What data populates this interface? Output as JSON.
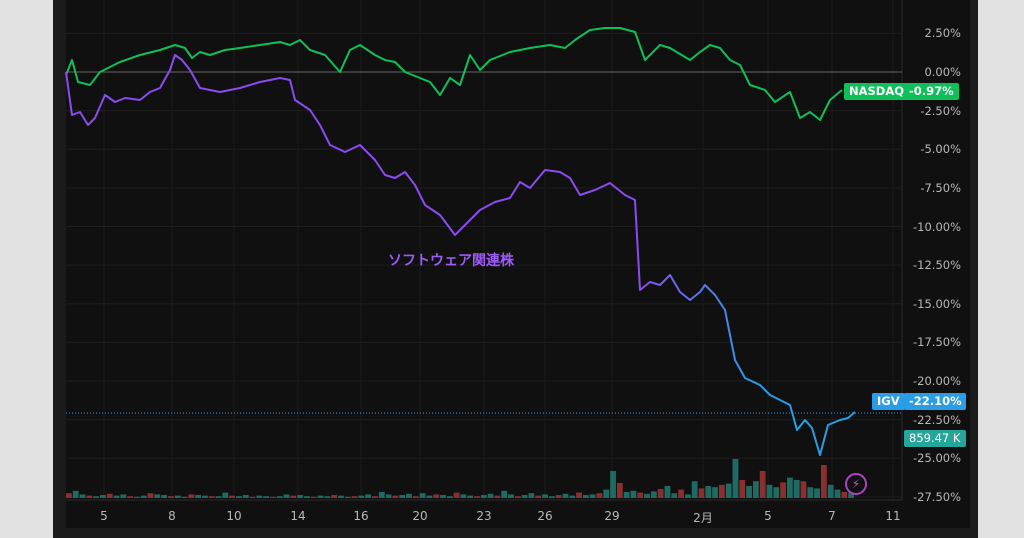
{
  "annotation": "ソフトウェア関連株",
  "y_axis": [
    "2.50%",
    "0.00%",
    "-2.50%",
    "-5.00%",
    "-7.50%",
    "-10.00%",
    "-12.50%",
    "-15.00%",
    "-17.50%",
    "-20.00%",
    "-22.50%",
    "-25.00%",
    "-27.50%"
  ],
  "y_values": [
    2.5,
    0,
    -2.5,
    -5,
    -7.5,
    -10,
    -12.5,
    -15,
    -17.5,
    -20,
    -22.5,
    -25,
    -27.5
  ],
  "x_axis": [
    "5",
    "8",
    "10",
    "14",
    "16",
    "20",
    "23",
    "26",
    "29",
    "2月",
    "5",
    "7",
    "11"
  ],
  "nasdaq": {
    "name": "NASDAQ",
    "value": "-0.97%",
    "color": "#0fbf5a"
  },
  "igv": {
    "name": "IGV",
    "value": "-22.10%",
    "color": "#2b9ce6",
    "color2": "#8a4cf0"
  },
  "volume": {
    "value": "859.47 K",
    "color": "#26a69a"
  },
  "chart_data": {
    "type": "line",
    "series": [
      {
        "name": "NASDAQ",
        "x": [
          66,
          72,
          78,
          90,
          100,
          120,
          140,
          160,
          175,
          185,
          192,
          200,
          210,
          225,
          240,
          260,
          280,
          290,
          300,
          310,
          325,
          340,
          350,
          360,
          375,
          385,
          395,
          405,
          420,
          430,
          440,
          450,
          460,
          470,
          480,
          490,
          510,
          530,
          550,
          565,
          575,
          590,
          605,
          620,
          635,
          645,
          660,
          670,
          690,
          700,
          710,
          720,
          730,
          740,
          750,
          765,
          775,
          790,
          800,
          810,
          820,
          830,
          842
        ],
        "y": [
          75,
          60,
          82,
          85,
          72,
          62,
          55,
          50,
          45,
          48,
          58,
          52,
          55,
          50,
          48,
          45,
          42,
          45,
          40,
          50,
          55,
          72,
          50,
          45,
          55,
          60,
          62,
          72,
          78,
          82,
          95,
          78,
          85,
          55,
          70,
          60,
          52,
          48,
          45,
          48,
          40,
          30,
          28,
          28,
          32,
          60,
          45,
          48,
          60,
          52,
          45,
          48,
          60,
          65,
          85,
          90,
          102,
          92,
          118,
          112,
          120,
          100,
          90
        ]
      },
      {
        "name": "IGV",
        "x": [
          66,
          72,
          80,
          88,
          95,
          105,
          115,
          125,
          140,
          150,
          160,
          170,
          175,
          182,
          190,
          200,
          210,
          220,
          240,
          260,
          280,
          290,
          295,
          310,
          320,
          330,
          345,
          360,
          375,
          385,
          395,
          405,
          415,
          425,
          440,
          455,
          465,
          480,
          495,
          510,
          520,
          530,
          545,
          560,
          570,
          580,
          595,
          610,
          625,
          635,
          640,
          650,
          660,
          670,
          680,
          690,
          700,
          705,
          715,
          725,
          735,
          745,
          760,
          770,
          780,
          790,
          797,
          805,
          812,
          820,
          828,
          840,
          848,
          855
        ],
        "y": [
          72,
          115,
          112,
          125,
          118,
          95,
          102,
          98,
          100,
          92,
          88,
          70,
          55,
          60,
          70,
          88,
          90,
          92,
          88,
          82,
          78,
          80,
          100,
          110,
          125,
          145,
          152,
          145,
          160,
          175,
          178,
          172,
          185,
          205,
          215,
          235,
          225,
          210,
          202,
          198,
          182,
          188,
          170,
          172,
          178,
          195,
          190,
          183,
          195,
          200,
          290,
          282,
          285,
          275,
          292,
          300,
          292,
          285,
          295,
          310,
          360,
          378,
          385,
          395,
          400,
          405,
          430,
          420,
          428,
          455,
          425,
          420,
          418,
          412
        ]
      }
    ],
    "volume_bars": [
      8,
      12,
      6,
      4,
      3,
      5,
      7,
      4,
      6,
      3,
      2,
      4,
      8,
      6,
      5,
      3,
      4,
      2,
      6,
      5,
      4,
      3,
      3,
      9,
      4,
      3,
      5,
      2,
      4,
      3,
      2,
      3,
      6,
      4,
      5,
      3,
      2,
      4,
      3,
      5,
      4,
      2,
      3,
      4,
      6,
      3,
      10,
      6,
      4,
      5,
      7,
      3,
      8,
      4,
      6,
      5,
      3,
      9,
      6,
      4,
      3,
      5,
      7,
      4,
      12,
      6,
      3,
      5,
      8,
      4,
      6,
      3,
      5,
      7,
      4,
      9,
      5,
      6,
      8,
      14,
      45,
      25,
      10,
      12,
      9,
      7,
      11,
      15,
      20,
      8,
      14,
      6,
      28,
      16,
      20,
      18,
      22,
      24,
      65,
      30,
      20,
      28,
      45,
      22,
      18,
      26,
      34,
      30,
      28,
      18,
      16,
      55,
      22,
      14,
      10,
      9
    ]
  }
}
